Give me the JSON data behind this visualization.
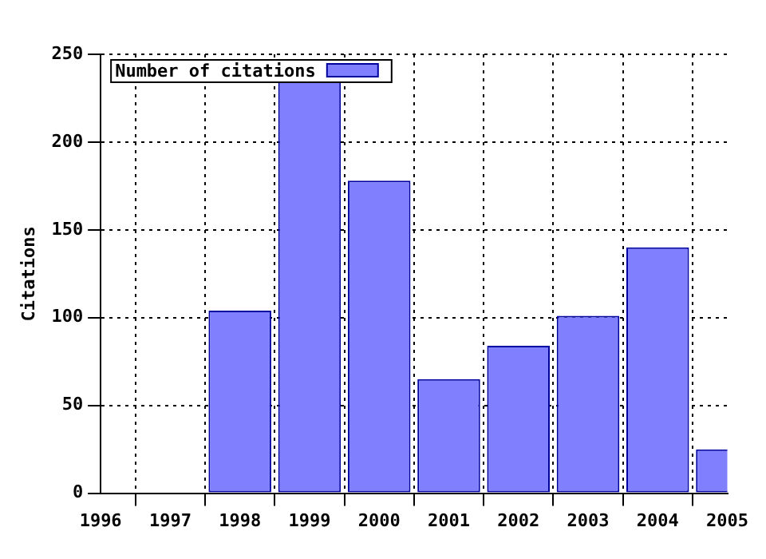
{
  "chart_data": {
    "type": "bar",
    "ylabel": "Citations",
    "x": [
      1998,
      1999,
      2000,
      2001,
      2002,
      2003,
      2004,
      2005
    ],
    "series": [
      {
        "name": "Number of citations",
        "color": "#8080ff",
        "values": [
          104,
          235,
          178,
          65,
          84,
          101,
          140,
          25
        ]
      }
    ],
    "xlim": [
      1996,
      2005
    ],
    "xticks": [
      1996,
      1997,
      1998,
      1999,
      2000,
      2001,
      2002,
      2003,
      2004,
      2005
    ],
    "ylim": [
      0,
      250
    ],
    "yticks": [
      0,
      50,
      100,
      150,
      200,
      250
    ],
    "grid": true,
    "legend": "top left"
  }
}
